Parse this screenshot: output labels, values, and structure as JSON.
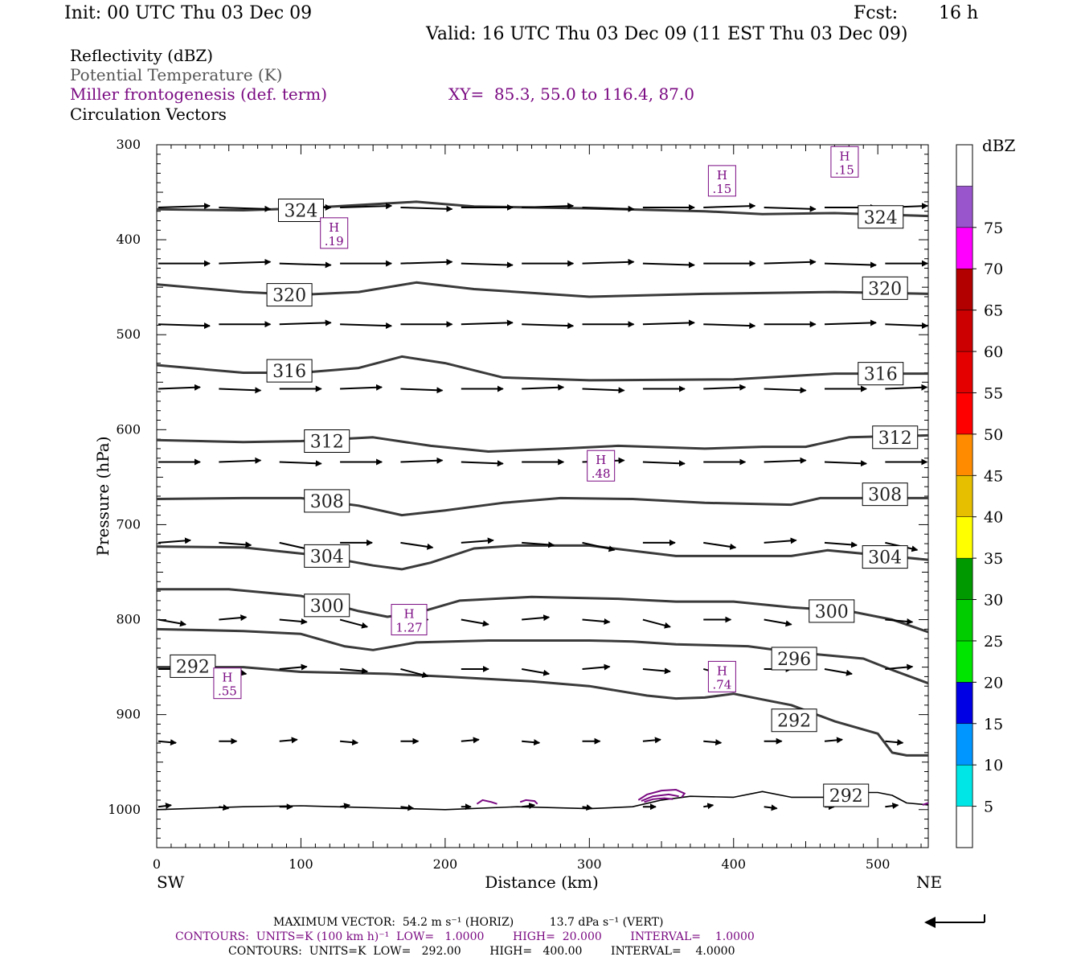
{
  "header": {
    "init": "Init: 00 UTC Thu 03 Dec 09",
    "fcst_label": "Fcst:",
    "fcst_value": "16 h",
    "valid": "Valid: 16 UTC Thu 03 Dec 09 (11 EST Thu 03 Dec 09)"
  },
  "fields": {
    "reflectivity": "Reflectivity (dBZ)",
    "theta": "Potential Temperature (K)",
    "frontogenesis": "Miller frontogenesis (def. term)",
    "xy": "XY=  85.3, 55.0 to 116.4, 87.0",
    "vectors": "Circulation Vectors"
  },
  "colors": {
    "theta_line": "#3a3a3a",
    "theta_label": "#000000",
    "frontogenesis": "#7a0a82",
    "theta_text": "#555555"
  },
  "chart_data": {
    "type": "line",
    "xlabel": "Distance (km)",
    "ylabel": "Pressure (hPa)",
    "xlim": [
      0,
      535
    ],
    "ylim": [
      1040,
      300
    ],
    "x_ticks": [
      "0",
      "100",
      "200",
      "300",
      "400",
      "500"
    ],
    "y_ticks": [
      "300",
      "400",
      "500",
      "600",
      "700",
      "800",
      "900",
      "1000"
    ],
    "x_end_labels": {
      "left": "SW",
      "right": "NE"
    },
    "isentropes": [
      {
        "label": "324",
        "points": [
          [
            0,
            368
          ],
          [
            60,
            369
          ],
          [
            100,
            367
          ],
          [
            180,
            360
          ],
          [
            220,
            365
          ],
          [
            300,
            367
          ],
          [
            380,
            370
          ],
          [
            420,
            373
          ],
          [
            470,
            372
          ],
          [
            535,
            375
          ]
        ]
      },
      {
        "label": "320",
        "points": [
          [
            0,
            447
          ],
          [
            60,
            455
          ],
          [
            100,
            458
          ],
          [
            140,
            455
          ],
          [
            180,
            445
          ],
          [
            220,
            452
          ],
          [
            300,
            460
          ],
          [
            380,
            457
          ],
          [
            470,
            455
          ],
          [
            535,
            457
          ]
        ]
      },
      {
        "label": "316",
        "points": [
          [
            0,
            532
          ],
          [
            60,
            540
          ],
          [
            100,
            540
          ],
          [
            140,
            535
          ],
          [
            170,
            523
          ],
          [
            200,
            530
          ],
          [
            240,
            545
          ],
          [
            300,
            548
          ],
          [
            400,
            547
          ],
          [
            470,
            541
          ],
          [
            535,
            541
          ]
        ]
      },
      {
        "label": "312",
        "points": [
          [
            0,
            611
          ],
          [
            60,
            613
          ],
          [
            100,
            612
          ],
          [
            150,
            608
          ],
          [
            190,
            617
          ],
          [
            230,
            623
          ],
          [
            280,
            620
          ],
          [
            320,
            617
          ],
          [
            380,
            620
          ],
          [
            420,
            618
          ],
          [
            450,
            618
          ],
          [
            480,
            608
          ],
          [
            535,
            606
          ]
        ]
      },
      {
        "label": "308",
        "points": [
          [
            0,
            673
          ],
          [
            60,
            672
          ],
          [
            100,
            672
          ],
          [
            140,
            680
          ],
          [
            170,
            690
          ],
          [
            200,
            685
          ],
          [
            240,
            677
          ],
          [
            280,
            672
          ],
          [
            330,
            673
          ],
          [
            380,
            677
          ],
          [
            440,
            679
          ],
          [
            460,
            672
          ],
          [
            535,
            672
          ]
        ]
      },
      {
        "label": "304",
        "points": [
          [
            0,
            723
          ],
          [
            60,
            724
          ],
          [
            110,
            732
          ],
          [
            150,
            743
          ],
          [
            170,
            747
          ],
          [
            190,
            740
          ],
          [
            220,
            725
          ],
          [
            250,
            722
          ],
          [
            300,
            722
          ],
          [
            360,
            733
          ],
          [
            400,
            733
          ],
          [
            440,
            733
          ],
          [
            465,
            727
          ],
          [
            535,
            737
          ]
        ]
      },
      {
        "label": "300",
        "points": [
          [
            0,
            768
          ],
          [
            50,
            768
          ],
          [
            100,
            775
          ],
          [
            140,
            791
          ],
          [
            160,
            797
          ],
          [
            185,
            791
          ],
          [
            210,
            780
          ],
          [
            260,
            776
          ],
          [
            320,
            778
          ],
          [
            360,
            781
          ],
          [
            400,
            781
          ],
          [
            440,
            787
          ],
          [
            480,
            791
          ],
          [
            510,
            800
          ],
          [
            535,
            813
          ]
        ]
      },
      {
        "label": "296",
        "points": [
          [
            0,
            810
          ],
          [
            60,
            812
          ],
          [
            100,
            815
          ],
          [
            130,
            828
          ],
          [
            150,
            832
          ],
          [
            180,
            824
          ],
          [
            230,
            822
          ],
          [
            300,
            822
          ],
          [
            330,
            823
          ],
          [
            360,
            826
          ],
          [
            410,
            828
          ],
          [
            440,
            834
          ],
          [
            490,
            841
          ],
          [
            510,
            853
          ],
          [
            535,
            867
          ]
        ]
      },
      {
        "label": "292",
        "points": [
          [
            0,
            850
          ],
          [
            60,
            850
          ],
          [
            100,
            855
          ],
          [
            160,
            857
          ],
          [
            200,
            860
          ],
          [
            260,
            865
          ],
          [
            300,
            870
          ],
          [
            340,
            880
          ],
          [
            360,
            883
          ],
          [
            380,
            882
          ],
          [
            400,
            878
          ],
          [
            420,
            884
          ],
          [
            440,
            890
          ],
          [
            470,
            907
          ],
          [
            500,
            920
          ],
          [
            510,
            940
          ],
          [
            520,
            943
          ],
          [
            535,
            943
          ]
        ]
      },
      {
        "label": "292",
        "points": [
          [
            0,
            1000
          ],
          [
            60,
            997
          ],
          [
            100,
            996
          ],
          [
            150,
            998
          ],
          [
            200,
            1000
          ],
          [
            250,
            997
          ],
          [
            300,
            999
          ],
          [
            330,
            997
          ],
          [
            350,
            990
          ],
          [
            370,
            986
          ],
          [
            400,
            987
          ],
          [
            420,
            981
          ],
          [
            440,
            987
          ],
          [
            470,
            987
          ],
          [
            490,
            982
          ],
          [
            500,
            982
          ],
          [
            510,
            985
          ],
          [
            520,
            993
          ],
          [
            535,
            995
          ]
        ]
      }
    ],
    "isentrope_labels": [
      {
        "text": "324",
        "x": 100,
        "p": 369
      },
      {
        "text": "324",
        "x": 502,
        "p": 376
      },
      {
        "text": "320",
        "x": 92,
        "p": 458
      },
      {
        "text": "320",
        "x": 505,
        "p": 451
      },
      {
        "text": "316",
        "x": 92,
        "p": 538
      },
      {
        "text": "316",
        "x": 502,
        "p": 541
      },
      {
        "text": "312",
        "x": 118,
        "p": 612
      },
      {
        "text": "312",
        "x": 512,
        "p": 608
      },
      {
        "text": "308",
        "x": 118,
        "p": 675
      },
      {
        "text": "308",
        "x": 505,
        "p": 668
      },
      {
        "text": "304",
        "x": 118,
        "p": 733
      },
      {
        "text": "304",
        "x": 505,
        "p": 734
      },
      {
        "text": "300",
        "x": 118,
        "p": 785
      },
      {
        "text": "300",
        "x": 468,
        "p": 791
      },
      {
        "text": "296",
        "x": 442,
        "p": 841
      },
      {
        "text": "292",
        "x": 25,
        "p": 849
      },
      {
        "text": "292",
        "x": 442,
        "p": 906
      },
      {
        "text": "292",
        "x": 478,
        "p": 985
      }
    ],
    "frontogenesis_highs": [
      {
        "value": ".15",
        "x": 477,
        "p": 318
      },
      {
        "value": ".15",
        "x": 392,
        "p": 338
      },
      {
        "value": ".19",
        "x": 123,
        "p": 393
      },
      {
        "value": ".48",
        "x": 308,
        "p": 638
      },
      {
        "value": "1.27",
        "x": 175,
        "p": 800
      },
      {
        "value": ".55",
        "x": 49,
        "p": 867
      },
      {
        "value": ".74",
        "x": 392,
        "p": 860
      }
    ],
    "vector_levels": [
      366,
      425,
      489,
      557,
      634,
      719,
      800,
      852,
      928,
      997
    ],
    "vector_columns": [
      0,
      42,
      84,
      126,
      168,
      210,
      252,
      294,
      336,
      378,
      420,
      462,
      504
    ],
    "color_scale": {
      "title": "dBZ",
      "labels": [
        "5",
        "10",
        "15",
        "20",
        "25",
        "30",
        "35",
        "40",
        "45",
        "50",
        "55",
        "60",
        "65",
        "70",
        "75"
      ],
      "colors": [
        "#00e5e5",
        "#0096ff",
        "#0000e5",
        "#00e500",
        "#00cc00",
        "#009900",
        "#ffff00",
        "#e5bf00",
        "#ff8c00",
        "#ff0000",
        "#e50000",
        "#cc0000",
        "#b20000",
        "#ff00ff",
        "#9955cc"
      ]
    }
  },
  "footer": {
    "max_vector": "MAXIMUM VECTOR:  54.2 m s⁻¹ (HORIZ)          13.7 dPa s⁻¹ (VERT)",
    "contours_fronto": "CONTOURS:  UNITS=K (100 km h)⁻¹  LOW=   1.0000        HIGH=  20.000        INTERVAL=    1.0000",
    "contours_theta": "CONTOURS:  UNITS=K  LOW=   292.00        HIGH=   400.00        INTERVAL=    4.0000"
  }
}
